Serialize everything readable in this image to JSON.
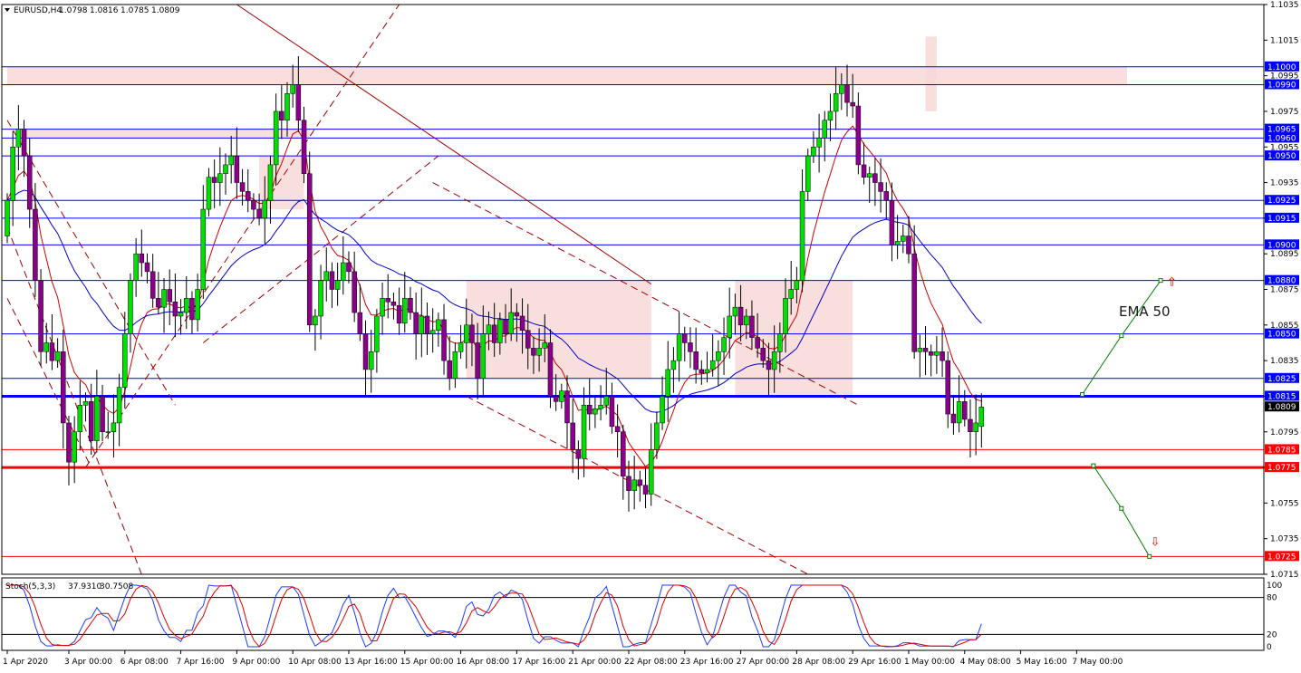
{
  "header": {
    "symbol_label": "EURUSD,H4",
    "ohlc": [
      "1.0798",
      "1.0816",
      "1.0785",
      "1.0809"
    ]
  },
  "indicator_header": {
    "label": "Stoch(5,3,3)",
    "values": [
      "37.9310",
      "30.7508"
    ]
  },
  "ema_label": "EMA 50",
  "colors": {
    "bull": "#00e000",
    "bear": "#8b008b",
    "wick": "#000000",
    "ema_fast": "#d00000",
    "ema_slow": "#0000c8",
    "h_line_blue": "#0000ff",
    "h_line_red": "#ff0000",
    "zone_fill": "#f8d8d8",
    "forecast": "#008000",
    "grid_frame": "#000000",
    "stoch_k": "#1e3cff",
    "stoch_d": "#e00000"
  },
  "chart_data": [
    {
      "type": "candlestick",
      "title": "EURUSD,H4",
      "current_price": 1.0809,
      "ylim": [
        1.0715,
        1.1035
      ],
      "y_ticks": [
        1.1035,
        1.1015,
        1.0995,
        1.0975,
        1.0955,
        1.0935,
        1.0915,
        1.0895,
        1.0875,
        1.0855,
        1.0835,
        1.0815,
        1.0795,
        1.0775,
        1.0755,
        1.0735,
        1.0715
      ],
      "x_ticks": [
        {
          "i": 0,
          "label": "1 Apr 2020"
        },
        {
          "i": 11,
          "label": "3 Apr 00:00"
        },
        {
          "i": 21,
          "label": "6 Apr 08:00"
        },
        {
          "i": 31,
          "label": "7 Apr 16:00"
        },
        {
          "i": 41,
          "label": "9 Apr 00:00"
        },
        {
          "i": 51,
          "label": "10 Apr 08:00"
        },
        {
          "i": 61,
          "label": "13 Apr 16:00"
        },
        {
          "i": 71,
          "label": "15 Apr 00:00"
        },
        {
          "i": 81,
          "label": "16 Apr 08:00"
        },
        {
          "i": 91,
          "label": "17 Apr 16:00"
        },
        {
          "i": 101,
          "label": "21 Apr 00:00"
        },
        {
          "i": 111,
          "label": "22 Apr 08:00"
        },
        {
          "i": 121,
          "label": "23 Apr 16:00"
        },
        {
          "i": 131,
          "label": "27 Apr 00:00"
        },
        {
          "i": 141,
          "label": "28 Apr 08:00"
        },
        {
          "i": 151,
          "label": "29 Apr 16:00"
        },
        {
          "i": 161,
          "label": "1 May 00:00"
        },
        {
          "i": 171,
          "label": "4 May 08:00"
        },
        {
          "i": 181,
          "label": "5 May 16:00"
        },
        {
          "i": 191,
          "label": "7 May 00:00"
        }
      ],
      "horizontal_levels": [
        {
          "price": 1.1,
          "label": "1.1000",
          "color": "#0000ff",
          "width": 1
        },
        {
          "price": 1.099,
          "label": "1.0990",
          "color": "#0000ff",
          "width": 1
        },
        {
          "price": 1.0965,
          "label": "1.0965",
          "color": "#0000ff",
          "width": 1
        },
        {
          "price": 1.096,
          "label": "1.0960",
          "color": "#0000ff",
          "width": 1
        },
        {
          "price": 1.095,
          "label": "1.0950",
          "color": "#0000ff",
          "width": 1
        },
        {
          "price": 1.0925,
          "label": "1.0925",
          "color": "#0000ff",
          "width": 1
        },
        {
          "price": 1.0915,
          "label": "1.0915",
          "color": "#0000ff",
          "width": 1
        },
        {
          "price": 1.09,
          "label": "1.0900",
          "color": "#0000ff",
          "width": 1
        },
        {
          "price": 1.088,
          "label": "1.0880",
          "color": "#0000ff",
          "width": 1
        },
        {
          "price": 1.085,
          "label": "1.0850",
          "color": "#0000ff",
          "width": 1
        },
        {
          "price": 1.0825,
          "label": "1.0825",
          "color": "#0000ff",
          "width": 1
        },
        {
          "price": 1.0815,
          "label": "1.0815",
          "color": "#0000ff",
          "width": 3
        },
        {
          "price": 1.0785,
          "label": "1.0785",
          "color": "#ff0000",
          "width": 1
        },
        {
          "price": 1.0775,
          "label": "1.0775",
          "color": "#ff0000",
          "width": 3
        },
        {
          "price": 1.0725,
          "label": "1.0725",
          "color": "#ff0000",
          "width": 1
        }
      ],
      "zones": [
        {
          "i0": 0,
          "i1": 200,
          "p0": 1.1,
          "p1": 1.099
        },
        {
          "i0": 3,
          "i1": 54,
          "p0": 1.0965,
          "p1": 1.096
        },
        {
          "i0": 45,
          "i1": 53,
          "p0": 1.095,
          "p1": 1.092
        },
        {
          "i0": 82,
          "i1": 115,
          "p0": 1.088,
          "p1": 1.0825
        },
        {
          "i0": 130,
          "i1": 151,
          "p0": 1.088,
          "p1": 1.0815
        },
        {
          "i0": 164,
          "i1": 166,
          "p0": 1.1017,
          "p1": 1.0975
        }
      ],
      "trend_lines": [
        {
          "i0": 41,
          "p0": 1.1035,
          "i1": 115,
          "p1": 1.0878,
          "style": "solid",
          "color": "#a00000"
        },
        {
          "i0": 14,
          "p0": 1.0775,
          "i1": 70,
          "p1": 1.1035,
          "style": "dashed",
          "color": "#a00000"
        },
        {
          "i0": 35,
          "p0": 1.0845,
          "i1": 77,
          "p1": 1.095,
          "style": "dashed",
          "color": "#a00000"
        },
        {
          "i0": 0,
          "p0": 1.091,
          "i1": 24,
          "p1": 1.0715,
          "style": "dashed",
          "color": "#a00000"
        },
        {
          "i0": 0,
          "p0": 1.097,
          "i1": 30,
          "p1": 1.081,
          "style": "dashed",
          "color": "#a00000"
        },
        {
          "i0": 0,
          "p0": 1.087,
          "i1": 15,
          "p1": 1.0775,
          "style": "dashed",
          "color": "#a00000"
        },
        {
          "i0": 76,
          "p0": 1.0935,
          "i1": 152,
          "p1": 1.081,
          "style": "dashed",
          "color": "#a00000"
        },
        {
          "i0": 82,
          "p0": 1.0815,
          "i1": 143,
          "p1": 1.0715,
          "style": "dashed",
          "color": "#a00000"
        }
      ],
      "forecast_path": [
        {
          "i": 192,
          "p": 1.0816
        },
        {
          "i": 199,
          "p": 1.0849
        },
        {
          "i": 206,
          "p": 1.088
        }
      ],
      "forecast_path_down": [
        {
          "i": 194,
          "p": 1.0776
        },
        {
          "i": 199,
          "p": 1.0752
        },
        {
          "i": 204,
          "p": 1.0725
        }
      ],
      "arrows": [
        {
          "i": 208,
          "p": 1.0877,
          "dir": "up"
        },
        {
          "i": 205,
          "p": 1.0731,
          "dir": "down"
        }
      ],
      "candles": []
    },
    {
      "type": "line",
      "title": "Stoch(5,3,3)",
      "ylim": [
        0,
        100
      ],
      "y_ticks": [
        100,
        80,
        20,
        0
      ],
      "series": [
        {
          "name": "%K",
          "values": []
        },
        {
          "name": "%D",
          "values": []
        }
      ]
    }
  ]
}
